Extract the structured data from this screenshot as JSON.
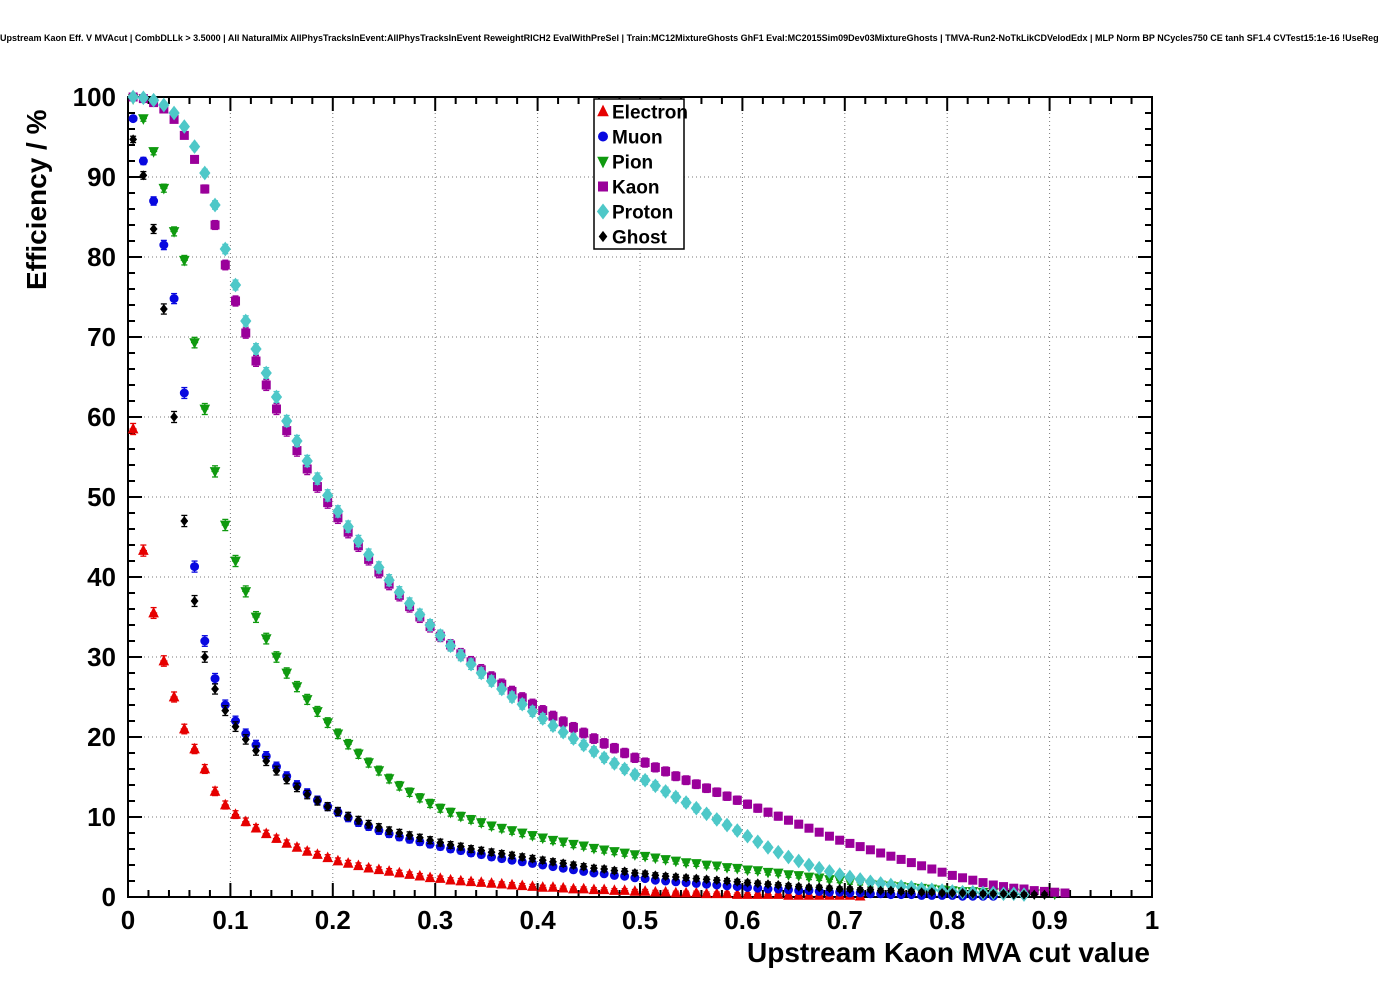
{
  "title": "Upstream Kaon Eff. V MVAcut | CombDLLk > 3.5000 | All NaturalMix AllPhysTracksInEvent:AllPhysTracksInEvent ReweightRICH2 EvalWithPreSel | Train:MC12MixtureGhosts GhF1 Eval:MC2015Sim09Dev03MixtureGhosts | TMVA-Run2-NoTkLikCDVelodEdx | MLP Norm BP NCycles750 CE tanh SF1.4 CVTest15:1e-16 !UseReg",
  "chart_data": {
    "type": "scatter",
    "title": "",
    "xlabel": "Upstream Kaon MVA cut value",
    "ylabel": "Efficiency / %",
    "xlim": [
      0,
      1
    ],
    "ylim": [
      0,
      100
    ],
    "grid": "dotted",
    "legend_position": "top-center",
    "xticks": [
      "0",
      "0.1",
      "0.2",
      "0.3",
      "0.4",
      "0.5",
      "0.6",
      "0.7",
      "0.8",
      "0.9",
      "1"
    ],
    "yticks": [
      "0",
      "10",
      "20",
      "30",
      "40",
      "50",
      "60",
      "70",
      "80",
      "90",
      "100"
    ],
    "series": [
      {
        "name": "Electron",
        "color": "#e60000",
        "marker": "triangle-up",
        "size": 4.5,
        "x_start": 0.005,
        "x_step": 0.01,
        "y": [
          58.5,
          43.3,
          35.5,
          29.5,
          25.0,
          21.0,
          18.5,
          16.0,
          13.2,
          11.5,
          10.3,
          9.4,
          8.6,
          7.9,
          7.3,
          6.7,
          6.2,
          5.7,
          5.3,
          4.9,
          4.5,
          4.2,
          3.9,
          3.6,
          3.4,
          3.2,
          3.0,
          2.8,
          2.6,
          2.4,
          2.3,
          2.1,
          2.0,
          1.9,
          1.8,
          1.7,
          1.6,
          1.5,
          1.4,
          1.3,
          1.2,
          1.2,
          1.1,
          1.0,
          1.0,
          0.9,
          0.9,
          0.8,
          0.8,
          0.7,
          0.7,
          0.6,
          0.6,
          0.5,
          0.5,
          0.5,
          0.4,
          0.4,
          0.4,
          0.3,
          0.3,
          0.3,
          0.3,
          0.3,
          0.2,
          0.2,
          0.2,
          0.2,
          0.2,
          0.2,
          0.2,
          0.1
        ]
      },
      {
        "name": "Muon",
        "color": "#0808e0",
        "marker": "circle",
        "size": 4,
        "x_start": 0.005,
        "x_step": 0.01,
        "y": [
          97.3,
          92.0,
          87.0,
          81.5,
          74.8,
          63.0,
          41.3,
          32.0,
          27.3,
          24.0,
          22.0,
          20.4,
          19.0,
          17.6,
          16.3,
          15.1,
          14.0,
          13.0,
          12.1,
          11.3,
          10.6,
          9.9,
          9.3,
          8.8,
          8.3,
          7.9,
          7.5,
          7.2,
          6.9,
          6.6,
          6.3,
          6.0,
          5.8,
          5.5,
          5.3,
          5.0,
          4.8,
          4.6,
          4.4,
          4.2,
          4.0,
          3.8,
          3.6,
          3.4,
          3.2,
          3.0,
          2.9,
          2.7,
          2.6,
          2.4,
          2.3,
          2.1,
          2.0,
          1.9,
          1.8,
          1.7,
          1.6,
          1.5,
          1.4,
          1.3,
          1.2,
          1.1,
          1.0,
          1.0,
          0.9,
          0.8,
          0.8,
          0.7,
          0.6,
          0.6,
          0.5,
          0.5,
          0.4,
          0.4,
          0.3,
          0.3,
          0.3,
          0.2,
          0.2,
          0.2,
          0.2,
          0.1,
          0.1,
          0.1,
          0.1
        ]
      },
      {
        "name": "Pion",
        "color": "#0f9a0f",
        "marker": "triangle-down",
        "size": 4.5,
        "x_start": 0.005,
        "x_step": 0.01,
        "y": [
          99.8,
          97.3,
          93.2,
          88.6,
          83.2,
          79.6,
          69.3,
          61.0,
          53.2,
          46.5,
          42.0,
          38.2,
          35.0,
          32.3,
          30.0,
          28.0,
          26.3,
          24.7,
          23.2,
          21.8,
          20.4,
          19.1,
          17.9,
          16.8,
          15.8,
          14.8,
          13.9,
          13.1,
          12.4,
          11.7,
          11.1,
          10.6,
          10.1,
          9.7,
          9.3,
          8.9,
          8.6,
          8.3,
          8.0,
          7.7,
          7.4,
          7.1,
          6.9,
          6.6,
          6.4,
          6.1,
          5.9,
          5.7,
          5.5,
          5.3,
          5.1,
          4.9,
          4.7,
          4.5,
          4.3,
          4.2,
          4.0,
          3.9,
          3.7,
          3.6,
          3.4,
          3.3,
          3.1,
          3.0,
          2.8,
          2.7,
          2.5,
          2.4,
          2.2,
          2.1,
          1.9,
          1.8,
          1.6,
          1.5,
          1.4,
          1.3,
          1.2,
          1.1,
          1.0,
          0.9,
          0.8,
          0.7,
          0.7,
          0.6,
          0.6,
          0.5,
          0.5,
          0.4,
          0.4,
          0.4,
          0.4
        ]
      },
      {
        "name": "Kaon",
        "color": "#9a009a",
        "marker": "square",
        "size": 4,
        "x_start": 0.005,
        "x_step": 0.01,
        "y": [
          100.0,
          99.8,
          99.3,
          98.5,
          97.2,
          95.2,
          92.2,
          88.5,
          84.0,
          79.0,
          74.5,
          70.5,
          67.0,
          64.0,
          61.0,
          58.3,
          55.8,
          53.5,
          51.3,
          49.3,
          47.4,
          45.6,
          43.9,
          42.2,
          40.6,
          39.1,
          37.7,
          36.3,
          35.0,
          33.8,
          32.6,
          31.5,
          30.4,
          29.4,
          28.4,
          27.5,
          26.6,
          25.7,
          24.9,
          24.1,
          23.3,
          22.6,
          21.9,
          21.2,
          20.5,
          19.8,
          19.2,
          18.6,
          18.0,
          17.4,
          16.8,
          16.2,
          15.7,
          15.1,
          14.6,
          14.1,
          13.6,
          13.1,
          12.6,
          12.1,
          11.6,
          11.1,
          10.6,
          10.1,
          9.6,
          9.1,
          8.6,
          8.1,
          7.6,
          7.1,
          6.7,
          6.3,
          5.9,
          5.5,
          5.1,
          4.7,
          4.3,
          3.9,
          3.5,
          3.1,
          2.7,
          2.4,
          2.1,
          1.8,
          1.5,
          1.3,
          1.1,
          1.0,
          0.8,
          0.7,
          0.6,
          0.5
        ]
      },
      {
        "name": "Proton",
        "color": "#4ec8c8",
        "marker": "diamond",
        "size": 5,
        "x_start": 0.005,
        "x_step": 0.01,
        "y": [
          100.0,
          99.9,
          99.6,
          99.0,
          98.0,
          96.3,
          93.8,
          90.5,
          86.5,
          81.0,
          76.5,
          72.0,
          68.5,
          65.5,
          62.5,
          59.5,
          57.0,
          54.5,
          52.3,
          50.2,
          48.2,
          46.3,
          44.5,
          42.8,
          41.2,
          39.6,
          38.1,
          36.7,
          35.3,
          34.0,
          32.7,
          31.4,
          30.2,
          29.1,
          28.0,
          27.0,
          26.0,
          25.0,
          24.1,
          23.2,
          22.3,
          21.4,
          20.6,
          19.8,
          19.0,
          18.2,
          17.4,
          16.7,
          16.0,
          15.3,
          14.6,
          13.9,
          13.2,
          12.5,
          11.8,
          11.1,
          10.4,
          9.7,
          9.0,
          8.3,
          7.6,
          6.9,
          6.2,
          5.6,
          5.0,
          4.5,
          4.0,
          3.6,
          3.2,
          2.8,
          2.5,
          2.2,
          1.9,
          1.7,
          1.5,
          1.3,
          1.2,
          1.0,
          0.9,
          0.8,
          0.7,
          0.6,
          0.6,
          0.5,
          0.5,
          0.4,
          0.4,
          0.3
        ]
      },
      {
        "name": "Ghost",
        "color": "#000000",
        "marker": "diamond",
        "size": 3.2,
        "x_start": 0.005,
        "x_step": 0.01,
        "y": [
          94.7,
          90.2,
          83.5,
          73.5,
          60.0,
          47.0,
          37.0,
          30.0,
          26.0,
          23.3,
          21.3,
          19.7,
          18.3,
          17.0,
          15.8,
          14.7,
          13.7,
          12.8,
          12.0,
          11.3,
          10.7,
          10.1,
          9.6,
          9.1,
          8.7,
          8.3,
          8.0,
          7.7,
          7.4,
          7.1,
          6.8,
          6.5,
          6.3,
          6.0,
          5.8,
          5.6,
          5.4,
          5.2,
          5.0,
          4.8,
          4.6,
          4.4,
          4.2,
          4.0,
          3.8,
          3.6,
          3.5,
          3.3,
          3.2,
          3.0,
          2.9,
          2.7,
          2.6,
          2.5,
          2.4,
          2.3,
          2.2,
          2.1,
          2.0,
          1.9,
          1.8,
          1.7,
          1.6,
          1.5,
          1.4,
          1.3,
          1.2,
          1.2,
          1.1,
          1.0,
          1.0,
          0.9,
          0.9,
          0.8,
          0.8,
          0.7,
          0.7,
          0.6,
          0.6,
          0.5,
          0.5,
          0.5,
          0.4,
          0.4,
          0.4,
          0.4,
          0.3,
          0.3,
          0.3,
          0.3
        ]
      }
    ]
  }
}
